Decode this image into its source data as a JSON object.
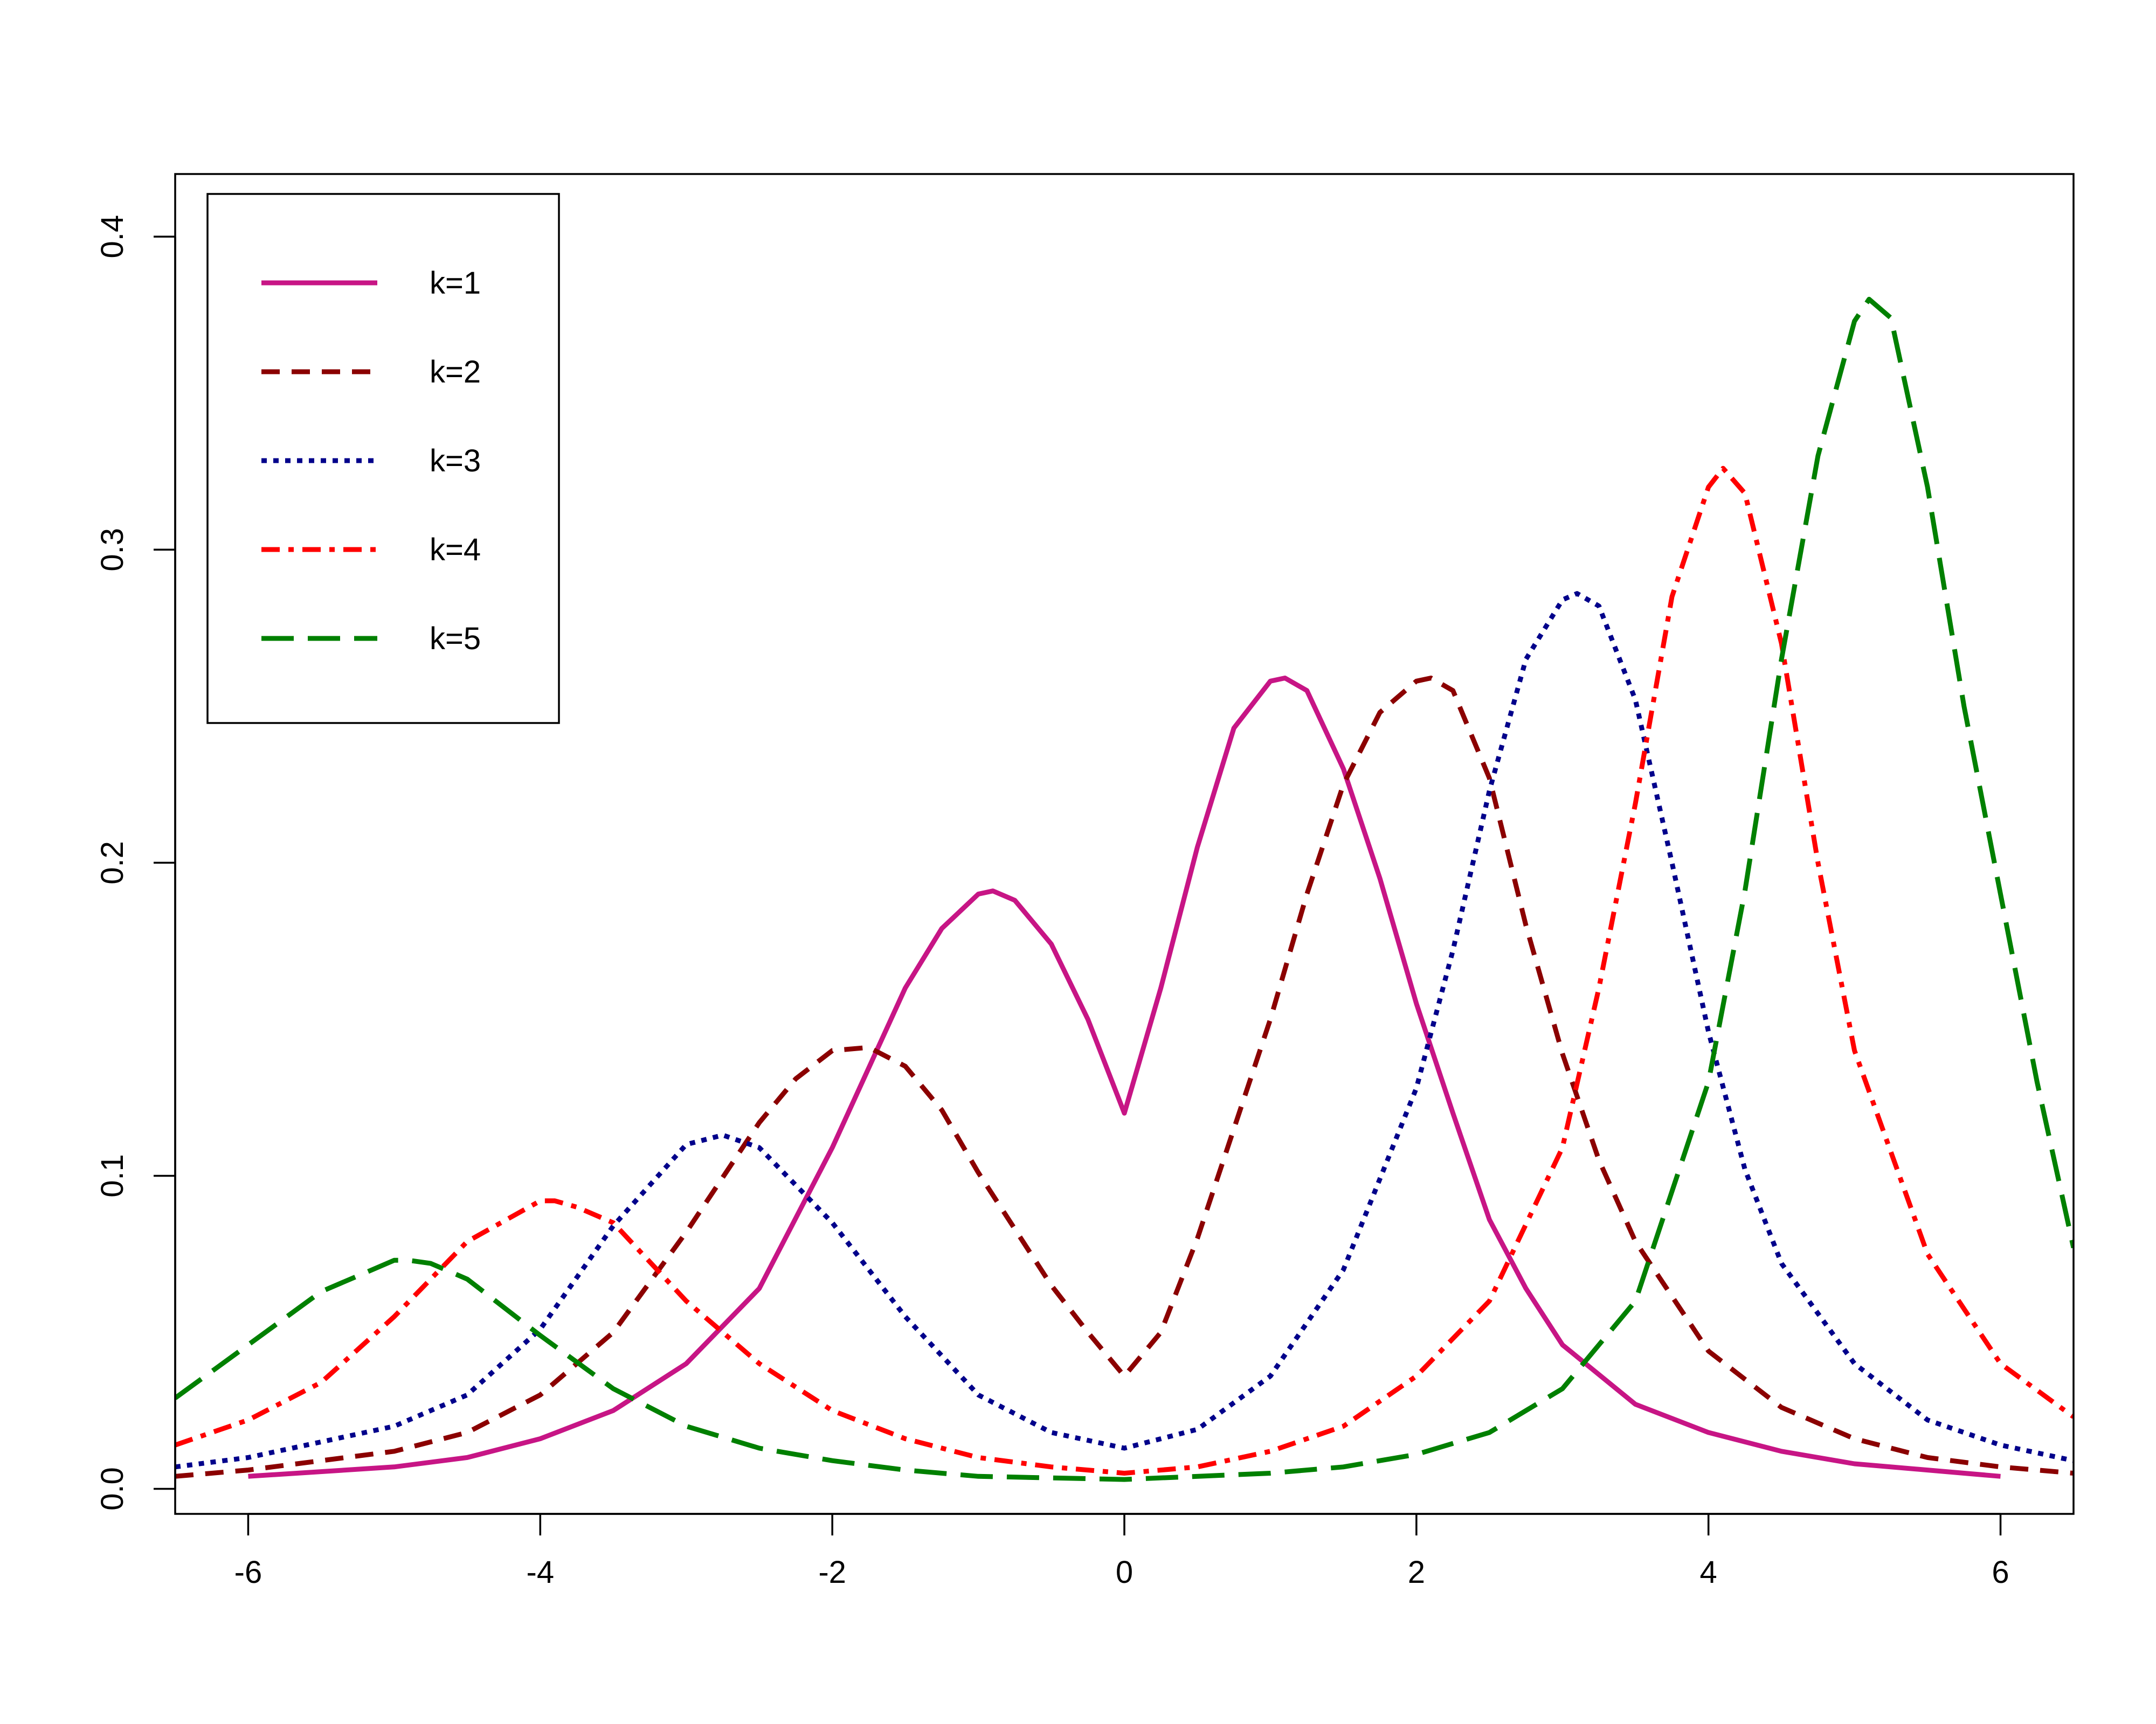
{
  "chart_data": {
    "type": "line",
    "xlim": [
      -6.5,
      6.5
    ],
    "ylim": [
      -0.008,
      0.42
    ],
    "x_ticks": [
      -6,
      -4,
      -2,
      0,
      2,
      4,
      6
    ],
    "x_tick_labels": [
      "-6",
      "-4",
      "-2",
      "0",
      "2",
      "4",
      "6"
    ],
    "y_ticks": [
      0.0,
      0.1,
      0.2,
      0.3,
      0.4
    ],
    "y_tick_labels": [
      "0.0",
      "0.1",
      "0.2",
      "0.3",
      "0.4"
    ],
    "grid": false,
    "legend_position": "top-left",
    "series": [
      {
        "name": "k=1",
        "color": "#C71585",
        "dash": "solid",
        "x": [
          -6,
          -5,
          -4.5,
          -4,
          -3.5,
          -3,
          -2.5,
          -2,
          -1.5,
          -1.25,
          -1,
          -0.9,
          -0.75,
          -0.5,
          -0.25,
          0,
          0.25,
          0.5,
          0.75,
          1,
          1.1,
          1.25,
          1.5,
          1.75,
          2,
          2.25,
          2.5,
          2.75,
          3,
          3.5,
          4,
          4.5,
          5,
          5.5,
          6
        ],
        "y": [
          0.004,
          0.007,
          0.01,
          0.016,
          0.025,
          0.04,
          0.064,
          0.109,
          0.16,
          0.179,
          0.19,
          0.191,
          0.188,
          0.174,
          0.15,
          0.12,
          0.16,
          0.205,
          0.243,
          0.258,
          0.259,
          0.255,
          0.23,
          0.195,
          0.155,
          0.12,
          0.086,
          0.064,
          0.046,
          0.027,
          0.018,
          0.012,
          0.008,
          0.006,
          0.004
        ]
      },
      {
        "name": "k=2",
        "color": "#8B0000",
        "dash": "dashed",
        "x": [
          -6.5,
          -6,
          -5,
          -4.5,
          -4,
          -3.5,
          -3,
          -2.5,
          -2.25,
          -2,
          -1.75,
          -1.5,
          -1.25,
          -1,
          -0.75,
          -0.5,
          -0.25,
          0,
          0.25,
          0.5,
          0.75,
          1,
          1.25,
          1.5,
          1.75,
          2,
          2.1,
          2.25,
          2.5,
          2.75,
          3,
          3.25,
          3.5,
          4,
          4.5,
          5,
          5.5,
          6,
          6.5
        ],
        "y": [
          0.004,
          0.006,
          0.012,
          0.018,
          0.03,
          0.05,
          0.082,
          0.117,
          0.131,
          0.14,
          0.141,
          0.135,
          0.121,
          0.101,
          0.083,
          0.065,
          0.05,
          0.036,
          0.05,
          0.08,
          0.115,
          0.15,
          0.19,
          0.225,
          0.248,
          0.258,
          0.259,
          0.255,
          0.227,
          0.18,
          0.139,
          0.105,
          0.079,
          0.044,
          0.026,
          0.016,
          0.01,
          0.007,
          0.005
        ]
      },
      {
        "name": "k=3",
        "color": "#00008B",
        "dash": "dotted",
        "x": [
          -6.5,
          -6,
          -5,
          -4.5,
          -4,
          -3.5,
          -3,
          -2.75,
          -2.5,
          -2,
          -1.5,
          -1,
          -0.5,
          0,
          0.5,
          1,
          1.5,
          2,
          2.25,
          2.5,
          2.75,
          3,
          3.1,
          3.25,
          3.5,
          3.75,
          4,
          4.25,
          4.5,
          5,
          5.5,
          6,
          6.5
        ],
        "y": [
          0.007,
          0.01,
          0.02,
          0.03,
          0.051,
          0.084,
          0.11,
          0.113,
          0.109,
          0.085,
          0.055,
          0.03,
          0.018,
          0.013,
          0.019,
          0.036,
          0.07,
          0.128,
          0.172,
          0.223,
          0.265,
          0.284,
          0.286,
          0.282,
          0.252,
          0.2,
          0.146,
          0.102,
          0.072,
          0.04,
          0.022,
          0.014,
          0.009
        ]
      },
      {
        "name": "k=4",
        "color": "#FF0000",
        "dash": "dashdot",
        "x": [
          -6.5,
          -6,
          -5.5,
          -5,
          -4.5,
          -4,
          -3.9,
          -3.75,
          -3.5,
          -3,
          -2.5,
          -2,
          -1.5,
          -1,
          -0.5,
          0,
          0.5,
          1,
          1.5,
          2,
          2.5,
          3,
          3.25,
          3.5,
          3.75,
          4,
          4.1,
          4.25,
          4.5,
          4.75,
          5,
          5.5,
          6,
          6.5
        ],
        "y": [
          0.014,
          0.022,
          0.034,
          0.055,
          0.079,
          0.092,
          0.092,
          0.09,
          0.085,
          0.06,
          0.04,
          0.025,
          0.016,
          0.01,
          0.007,
          0.005,
          0.007,
          0.012,
          0.02,
          0.036,
          0.06,
          0.109,
          0.16,
          0.219,
          0.285,
          0.32,
          0.326,
          0.318,
          0.27,
          0.2,
          0.14,
          0.075,
          0.04,
          0.023
        ]
      },
      {
        "name": "k=5",
        "color": "#008000",
        "dash": "longdash",
        "x": [
          -6.5,
          -6,
          -5.5,
          -5,
          -4.9,
          -4.75,
          -4.5,
          -4,
          -3.5,
          -3,
          -2.5,
          -2,
          -1.5,
          -1,
          0,
          1,
          1.5,
          2,
          2.5,
          3,
          3.5,
          4,
          4.25,
          4.5,
          4.75,
          5,
          5.1,
          5.25,
          5.5,
          5.75,
          6,
          6.25,
          6.5
        ],
        "y": [
          0.029,
          0.046,
          0.063,
          0.073,
          0.073,
          0.072,
          0.067,
          0.049,
          0.032,
          0.02,
          0.013,
          0.009,
          0.006,
          0.004,
          0.003,
          0.005,
          0.007,
          0.011,
          0.018,
          0.032,
          0.06,
          0.13,
          0.191,
          0.265,
          0.33,
          0.373,
          0.38,
          0.374,
          0.32,
          0.25,
          0.19,
          0.13,
          0.077
        ]
      }
    ]
  }
}
